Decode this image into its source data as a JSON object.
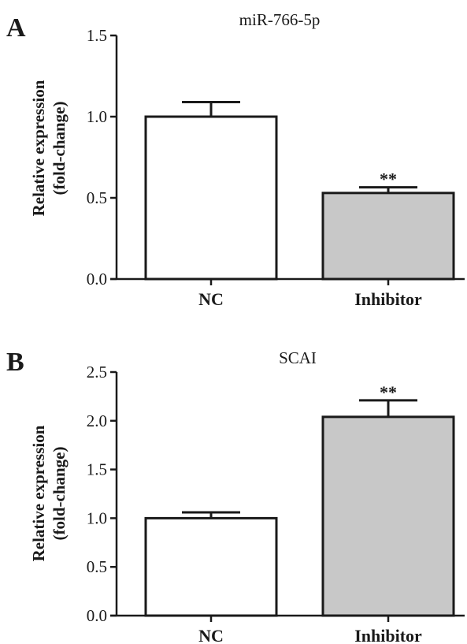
{
  "chart_data": [
    {
      "panel": "A",
      "type": "bar",
      "title": "miR-766-5p",
      "ylabel_lines": [
        "Relative expression",
        "(fold-change)"
      ],
      "categories": [
        "NC",
        "Inhibitor"
      ],
      "values": [
        1.0,
        0.53
      ],
      "errors": [
        0.09,
        0.035
      ],
      "bar_colors": [
        "#ffffff",
        "#c8c8c8"
      ],
      "significance": [
        "",
        "**"
      ],
      "ylim": [
        0,
        1.5
      ],
      "yticks": [
        0.0,
        0.5,
        1.0,
        1.5
      ],
      "ytick_labels": [
        "0.0",
        "0.5",
        "1.0",
        "1.5"
      ]
    },
    {
      "panel": "B",
      "type": "bar",
      "title": "SCAI",
      "ylabel_lines": [
        "Relative expression",
        "(fold-change)"
      ],
      "categories": [
        "NC",
        "Inhibitor"
      ],
      "values": [
        1.0,
        2.04
      ],
      "errors": [
        0.06,
        0.17
      ],
      "bar_colors": [
        "#ffffff",
        "#c8c8c8"
      ],
      "significance": [
        "",
        "**"
      ],
      "ylim": [
        0,
        2.5
      ],
      "yticks": [
        0.0,
        0.5,
        1.0,
        1.5,
        2.0,
        2.5
      ],
      "ytick_labels": [
        "0.0",
        "0.5",
        "1.0",
        "1.5",
        "2.0",
        "2.5"
      ]
    }
  ]
}
